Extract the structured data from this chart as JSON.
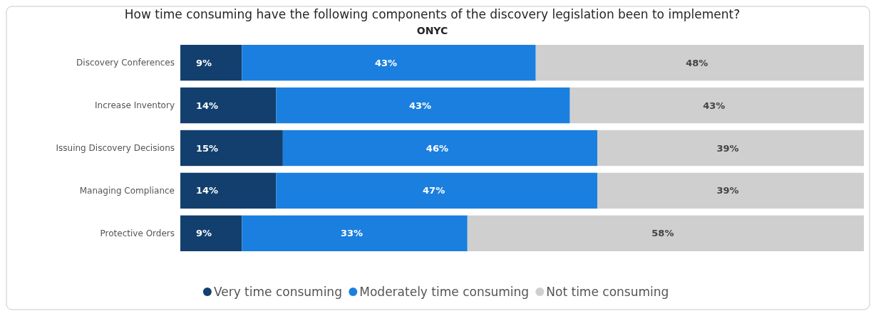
{
  "chart_data": {
    "type": "bar",
    "orientation": "horizontal",
    "stacked": true,
    "title": "How time consuming have the following components of the discovery legislation been to implement?",
    "subtitle": "ONYC",
    "categories": [
      "Discovery Conferences",
      "Increase Inventory",
      "Issuing Discovery Decisions",
      "Managing Compliance",
      "Protective Orders"
    ],
    "series": [
      {
        "name": "Very time consuming",
        "color": "#123f6e",
        "values": [
          9,
          14,
          15,
          14,
          9
        ],
        "value_labels": [
          "9%",
          "14%",
          "15%",
          "14%",
          "9%"
        ]
      },
      {
        "name": "Moderately time consuming",
        "color": "#1b7fe0",
        "values": [
          43,
          43,
          46,
          47,
          33
        ],
        "value_labels": [
          "43%",
          "43%",
          "46%",
          "47%",
          "33%"
        ]
      },
      {
        "name": "Not time consuming",
        "color": "#cfcfcf",
        "values": [
          48,
          43,
          39,
          39,
          58
        ],
        "value_labels": [
          "48%",
          "43%",
          "39%",
          "39%",
          "58%"
        ]
      }
    ],
    "xlim": [
      0,
      100
    ],
    "tick_labels": "y",
    "legend": "bottom"
  }
}
